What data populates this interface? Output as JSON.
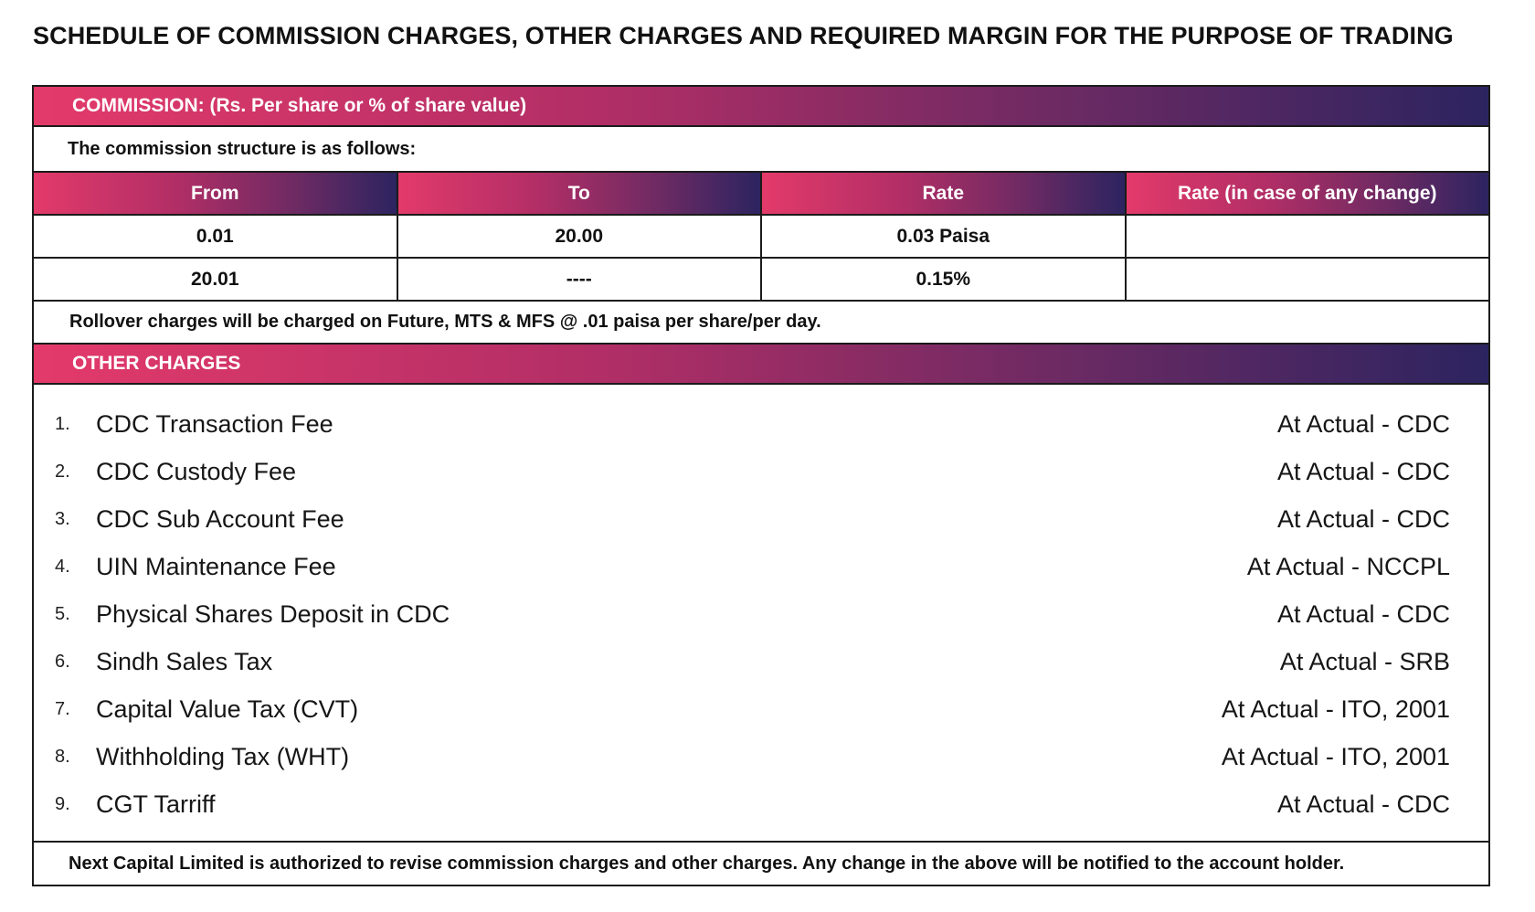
{
  "title": "SCHEDULE OF COMMISSION CHARGES, OTHER CHARGES AND REQUIRED MARGIN FOR THE PURPOSE OF TRADING",
  "commission": {
    "heading": "COMMISSION: (Rs. Per share or % of share value)",
    "structure_note": "The commission structure is as follows:",
    "columns": [
      "From",
      "To",
      "Rate",
      "Rate (in case of any change)"
    ],
    "rows": [
      [
        "0.01",
        "20.00",
        "0.03 Paisa",
        ""
      ],
      [
        "20.01",
        "----",
        "0.15%",
        ""
      ]
    ],
    "rollover_note": "Rollover charges will be charged on Future, MTS & MFS @ .01 paisa per share/per day."
  },
  "other_charges": {
    "heading": "OTHER CHARGES",
    "items": [
      {
        "num": "1.",
        "name": "CDC Transaction Fee",
        "value": "At Actual - CDC"
      },
      {
        "num": "2.",
        "name": "CDC Custody Fee",
        "value": "At Actual - CDC"
      },
      {
        "num": "3.",
        "name": "CDC Sub Account Fee",
        "value": "At Actual - CDC"
      },
      {
        "num": "4.",
        "name": "UIN Maintenance Fee",
        "value": "At Actual - NCCPL"
      },
      {
        "num": "5.",
        "name": "Physical Shares Deposit in CDC",
        "value": "At Actual - CDC"
      },
      {
        "num": "6.",
        "name": "Sindh Sales Tax",
        "value": "At Actual - SRB"
      },
      {
        "num": "7.",
        "name": "Capital Value Tax (CVT)",
        "value": "At Actual - ITO, 2001"
      },
      {
        "num": "8.",
        "name": "Withholding Tax (WHT)",
        "value": "At Actual - ITO, 2001"
      },
      {
        "num": "9.",
        "name": "CGT Tarriff",
        "value": "At Actual - CDC"
      }
    ]
  },
  "footer_note": "Next Capital Limited is authorized to revise commission charges and other charges. Any change in the above will be notified to the account holder.",
  "colors": {
    "gradient_start": "#e33a6a",
    "gradient_end": "#2c2460",
    "border": "#1b1b1b"
  }
}
